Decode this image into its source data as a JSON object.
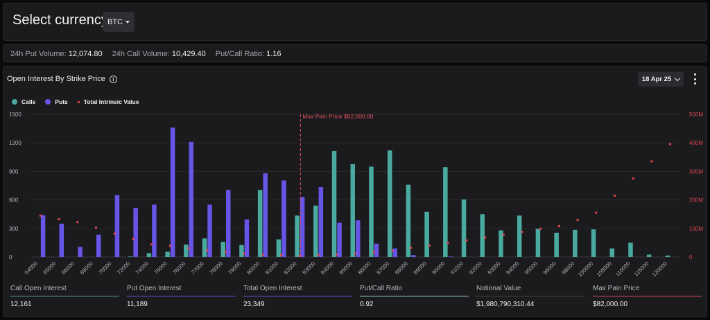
{
  "header": {
    "select_label": "Select currency:",
    "currency": "BTC"
  },
  "stats": [
    {
      "label": "24h Put Volume:",
      "value": "12,074.80"
    },
    {
      "label": "24h Call Volume:",
      "value": "10,429.40"
    },
    {
      "label": "Put/Call Ratio:",
      "value": "1.16"
    }
  ],
  "chart_header": {
    "title": "Open Interest By Strike Price",
    "expiry": "18 Apr 25"
  },
  "legend": {
    "calls": "Calls",
    "puts": "Puts",
    "intrinsic": "Total Intrinsic Value"
  },
  "colors": {
    "calls": "#4aaaa0",
    "puts": "#6655e6",
    "intrinsic": "#e0444f",
    "max_pain": "#e05060"
  },
  "chart_data": {
    "type": "bar",
    "categories": [
      "64000",
      "65000",
      "66000",
      "68000",
      "70000",
      "72000",
      "74000",
      "75000",
      "76000",
      "77000",
      "78000",
      "79000",
      "80000",
      "81000",
      "82000",
      "83000",
      "84000",
      "85000",
      "86000",
      "87000",
      "88000",
      "89000",
      "90000",
      "91000",
      "92000",
      "93000",
      "94000",
      "95000",
      "96000",
      "98000",
      "100000",
      "105000",
      "110000",
      "115000",
      "120000"
    ],
    "series": [
      {
        "name": "Calls",
        "axis": "left",
        "values": [
          0,
          0,
          0,
          0,
          0,
          5,
          40,
          55,
          130,
          195,
          160,
          125,
          705,
          185,
          435,
          540,
          1115,
          975,
          950,
          1120,
          760,
          475,
          945,
          605,
          450,
          280,
          435,
          295,
          255,
          285,
          290,
          90,
          150,
          25,
          15
        ]
      },
      {
        "name": "Puts",
        "axis": "left",
        "values": [
          440,
          350,
          105,
          235,
          650,
          515,
          550,
          1360,
          1210,
          550,
          705,
          395,
          880,
          805,
          630,
          735,
          360,
          385,
          140,
          90,
          20,
          0,
          5,
          0,
          0,
          0,
          0,
          0,
          0,
          0,
          0,
          0,
          0,
          0,
          0
        ]
      },
      {
        "name": "Total Intrinsic Value",
        "axis": "right",
        "type": "scatter",
        "values": [
          145,
          132,
          122,
          103,
          82,
          63,
          44,
          39,
          30,
          23,
          17,
          12,
          8,
          6,
          5,
          6,
          9,
          12,
          16,
          22,
          32,
          40,
          49,
          58,
          68,
          78,
          88,
          99,
          108,
          130,
          155,
          215,
          275,
          335,
          395
        ]
      }
    ],
    "yticks_left": [
      "0",
      "300",
      "600",
      "900",
      "1200",
      "1500"
    ],
    "ylim_left": [
      0,
      1500
    ],
    "yticks_right": [
      "0",
      "100M",
      "200M",
      "300M",
      "400M",
      "500M"
    ],
    "ylim_right": [
      0,
      500
    ],
    "right_unit": "M",
    "max_pain": {
      "category": "82000",
      "label": "Max Pain Price $82,000.00"
    },
    "legend_position": "top-left"
  },
  "summary": [
    {
      "label": "Call Open Interest",
      "value": "12,161",
      "color": "#4aaaa0"
    },
    {
      "label": "Put Open Interest",
      "value": "11,189",
      "color": "#6655e6"
    },
    {
      "label": "Total Open Interest",
      "value": "23,349",
      "color": "#6655e6"
    },
    {
      "label": "Put/Call Ratio",
      "value": "0.92",
      "color": "#9fd6d0"
    },
    {
      "label": "Notional Value",
      "value": "$1,980,790,310.44",
      "color": "#444448"
    },
    {
      "label": "Max Pain Price",
      "value": "$82,000.00",
      "color": "#e05060"
    }
  ]
}
